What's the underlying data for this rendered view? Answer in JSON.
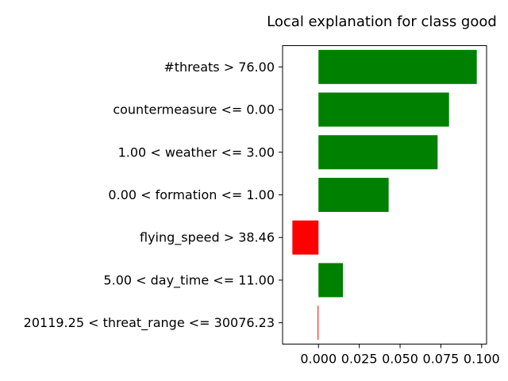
{
  "chart_data": {
    "type": "bar",
    "orientation": "horizontal",
    "title": "Local explanation for class good",
    "xlabel": "",
    "ylabel": "",
    "categories": [
      "#threats > 76.00",
      "countermeasure <= 0.00",
      "1.00 < weather <= 3.00",
      "0.00 < formation <= 1.00",
      "flying_speed > 38.46",
      "5.00 < day_time <= 11.00",
      "20119.25 < threat_range <= 30076.23"
    ],
    "values": [
      0.097,
      0.08,
      0.073,
      0.043,
      -0.016,
      0.015,
      -0.0005
    ],
    "xlim": [
      -0.022,
      0.103
    ],
    "xticks": [
      0.0,
      0.025,
      0.05,
      0.075,
      0.1
    ],
    "xtick_labels": [
      "0.000",
      "0.025",
      "0.050",
      "0.075",
      "0.100"
    ],
    "grid": false,
    "colors": {
      "positive": "#008000",
      "negative": "#ff0000"
    }
  }
}
